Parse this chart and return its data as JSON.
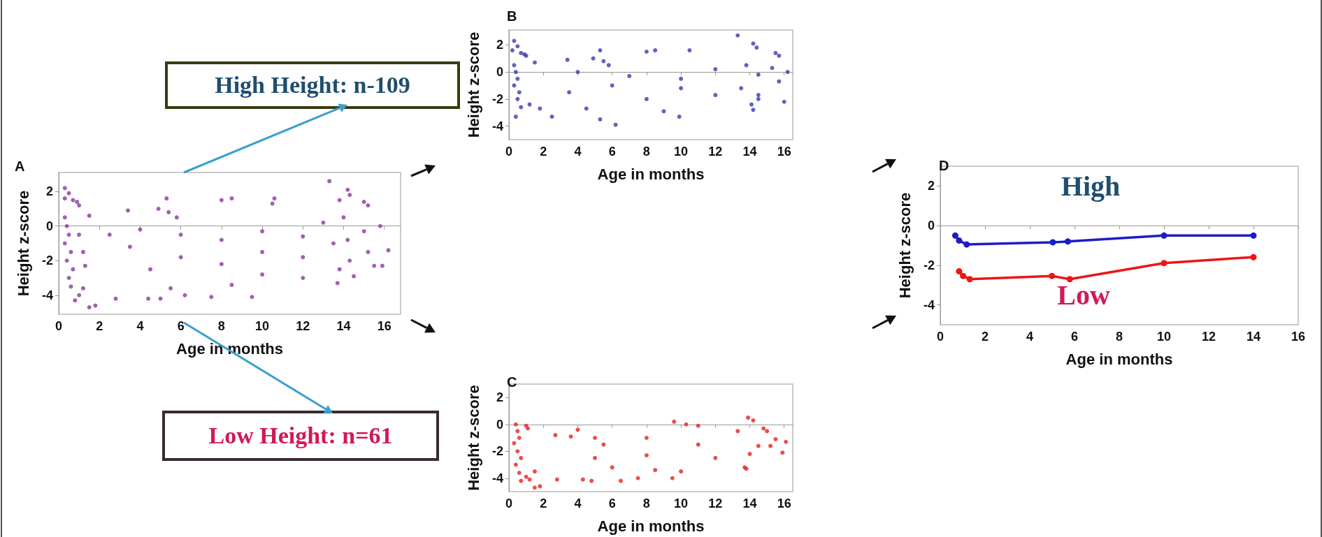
{
  "chart_data": [
    {
      "type": "scatter",
      "title": "A",
      "xlabel": "Age in months",
      "ylabel": "Height z-score",
      "xlim": [
        0,
        16.8
      ],
      "xticks": [
        0,
        2,
        4,
        6,
        8,
        10,
        12,
        14,
        16
      ],
      "ylim": [
        -5.1,
        3.1
      ],
      "yticks": [
        -4,
        -2,
        0,
        2
      ],
      "marker": "circle",
      "annotations": [
        "High Height: n-109",
        "Low Height: n=61"
      ],
      "series": [
        {
          "color": "#8a3a9c",
          "x": [
            0.3,
            0.5,
            0.3,
            0.7,
            0.9,
            1.0,
            1.5,
            3.4,
            4.9,
            5.3,
            5.4,
            5.8,
            8.0,
            8.5,
            10.5,
            10.6,
            13.3,
            14.2,
            14.3,
            15.0,
            15.2,
            13.8,
            0.3,
            0.4,
            0.5,
            0.3,
            0.6,
            0.4,
            0.7,
            0.5,
            0.6,
            0.8,
            1.0,
            1.2,
            1.0,
            1.2,
            1.3,
            1.5,
            1.8,
            2.8,
            2.5,
            3.5,
            4.0,
            4.5,
            4.4,
            5.0,
            5.5,
            6.0,
            6.0,
            6.2,
            7.5,
            8.0,
            8.0,
            8.5,
            9.5,
            10.0,
            10.0,
            10.0,
            12.0,
            12.0,
            12.0,
            13.0,
            13.5,
            13.8,
            13.7,
            14.0,
            14.2,
            14.3,
            14.5,
            15.0,
            15.2,
            15.5,
            15.8,
            15.9,
            16.2
          ],
          "values": [
            2.2,
            1.9,
            1.6,
            1.5,
            1.4,
            1.2,
            0.6,
            0.9,
            1.0,
            1.6,
            0.8,
            0.5,
            1.5,
            1.6,
            1.3,
            1.6,
            2.6,
            2.1,
            1.8,
            1.4,
            1.2,
            1.5,
            0.5,
            0,
            -0.5,
            -1,
            -1.5,
            -2,
            -2.5,
            -3,
            -3.5,
            -4.3,
            -4,
            -3.6,
            -0.5,
            -1.5,
            -2.3,
            -4.7,
            -4.6,
            -4.2,
            -0.5,
            -1.2,
            -0.2,
            -2.5,
            -4.2,
            -4.2,
            -3.6,
            -0.5,
            -1.8,
            -4.0,
            -4.1,
            -0.8,
            -2.2,
            -3.4,
            -4.1,
            -0.3,
            -1.5,
            -2.8,
            -0.6,
            -1.8,
            -3.0,
            0.2,
            -1,
            -2.5,
            -3.3,
            0.5,
            -0.8,
            -2.0,
            -2.9,
            -0.3,
            -1.5,
            -2.3,
            0,
            -2.3,
            -1.4
          ]
        }
      ]
    },
    {
      "type": "scatter",
      "title": "B",
      "xlabel": "Age in months",
      "ylabel": "Height z-score",
      "xlim": [
        0,
        16.5
      ],
      "xticks": [
        0,
        2,
        4,
        6,
        8,
        10,
        12,
        14,
        16
      ],
      "ylim": [
        -5,
        3.1
      ],
      "yticks": [
        -4,
        -2,
        0,
        2
      ],
      "marker": "circle",
      "series": [
        {
          "color": "#3b3bb0",
          "x": [
            0.3,
            0.5,
            0.2,
            0.7,
            0.9,
            1.0,
            1.5,
            3.4,
            4.9,
            5.3,
            5.5,
            5.8,
            8.0,
            8.5,
            10.5,
            13.3,
            14.2,
            14.4,
            15.5,
            15.7,
            0.3,
            0.4,
            0.5,
            0.3,
            0.6,
            0.5,
            0.7,
            0.4,
            1.2,
            1.8,
            2.5,
            4.5,
            5.3,
            6.2,
            9.0,
            9.9,
            14.2,
            14.1,
            14.5,
            14.5,
            16.0,
            3.5,
            4.0,
            6.0,
            7.0,
            8.0,
            10.0,
            10.0,
            12.0,
            12.0,
            13.5,
            13.8,
            14.5,
            15.3,
            15.7,
            16.2
          ],
          "values": [
            2.3,
            1.9,
            1.6,
            1.4,
            1.3,
            1.2,
            0.7,
            0.9,
            1.0,
            1.6,
            0.8,
            0.5,
            1.5,
            1.6,
            1.6,
            2.7,
            2.1,
            1.8,
            1.4,
            1.2,
            0.5,
            0,
            -0.5,
            -1,
            -1.5,
            -2,
            -2.6,
            -3.3,
            -2.4,
            -2.7,
            -3.3,
            -2.7,
            -3.5,
            -3.9,
            -2.9,
            -3.3,
            -2.8,
            -2.4,
            -2.0,
            -1.7,
            -2.2,
            -1.5,
            0,
            -1.0,
            -0.3,
            -2.0,
            -0.5,
            -1.2,
            0.2,
            -1.7,
            -1.2,
            0.5,
            -0.2,
            0.3,
            -0.7,
            0
          ]
        }
      ]
    },
    {
      "type": "scatter",
      "title": "C",
      "xlabel": "Age in months",
      "ylabel": "Height z-score",
      "xlim": [
        0,
        16.5
      ],
      "xticks": [
        0,
        2,
        4,
        6,
        8,
        10,
        12,
        14,
        16
      ],
      "ylim": [
        -5,
        3
      ],
      "yticks": [
        -4,
        -2,
        0,
        2
      ],
      "marker": "circle",
      "series": [
        {
          "color": "#e62020",
          "x": [
            0.4,
            0.5,
            0.3,
            0.6,
            0.5,
            0.7,
            0.4,
            0.6,
            0.7,
            1.0,
            1.1,
            1.0,
            1.2,
            1.5,
            1.8,
            1.5,
            2.7,
            2.8,
            3.6,
            4.0,
            4.3,
            4.8,
            5.0,
            5.0,
            5.5,
            6.0,
            6.5,
            7.5,
            8.0,
            8.0,
            8.5,
            9.5,
            9.6,
            10.0,
            10.3,
            11.0,
            11.0,
            12.0,
            13.3,
            13.7,
            13.8,
            13.9,
            14.0,
            14.2,
            14.5,
            14.8,
            15.0,
            15.2,
            15.5,
            15.9,
            16.1
          ],
          "values": [
            0,
            -0.5,
            -1.4,
            -1,
            -2,
            -2.5,
            -3,
            -3.6,
            -4.2,
            -0.1,
            -0.3,
            -3.9,
            -4.1,
            -4.7,
            -4.6,
            -3.5,
            -0.8,
            -4.1,
            -0.9,
            -0.4,
            -4.1,
            -4.2,
            -1.0,
            -2.5,
            -1.5,
            -3.2,
            -4.2,
            -4.0,
            -1.0,
            -2.3,
            -3.4,
            -4.0,
            0.2,
            -3.5,
            0,
            -0.1,
            -1.5,
            -2.5,
            -0.5,
            -3.2,
            -3.3,
            0.5,
            -2.2,
            0.3,
            -1.6,
            -0.3,
            -0.5,
            -1.6,
            -1.1,
            -2.1,
            -1.3
          ]
        }
      ]
    },
    {
      "type": "line",
      "title": "D",
      "xlabel": "Age in months",
      "ylabel": "Height z-score",
      "xlim": [
        0,
        16
      ],
      "xticks": [
        0,
        2,
        4,
        6,
        8,
        10,
        12,
        14,
        16
      ],
      "ylim": [
        -5,
        3
      ],
      "yticks": [
        -4,
        -2,
        0,
        2
      ],
      "marker": "circle",
      "line_style": "solid",
      "annotations": [
        "High",
        "Low"
      ],
      "series": [
        {
          "color": "#1c1cc8",
          "x": [
            0.67,
            0.84,
            1.18,
            5.03,
            5.7,
            10,
            14
          ],
          "values": [
            -0.5,
            -0.75,
            -0.95,
            -0.84,
            -0.8,
            -0.5,
            -0.5
          ]
        },
        {
          "color": "#ee1515",
          "x": [
            0.84,
            1.02,
            1.32,
            4.99,
            5.79,
            10,
            14
          ],
          "values": [
            -2.3,
            -2.54,
            -2.7,
            -2.54,
            -2.7,
            -1.89,
            -1.59
          ]
        }
      ]
    }
  ]
}
